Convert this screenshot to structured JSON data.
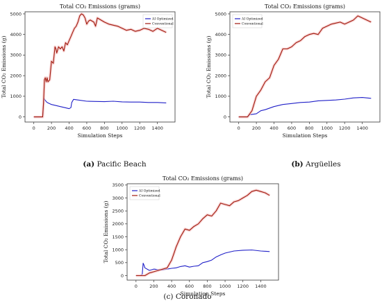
{
  "colors": {
    "ai": "#1f1fc8",
    "conventional": "#a0180c",
    "halo": "#f5c6c6",
    "axis": "#333333"
  },
  "subfigures": [
    {
      "tag": "(a)",
      "name": "Pacific Beach"
    },
    {
      "tag": "(b)",
      "name": "Argüelles"
    },
    {
      "tag": "(c)",
      "name": "Coronado"
    }
  ],
  "chart_data": [
    {
      "type": "line",
      "title": "Total CO₂ Emissions (grams)",
      "xlabel": "Simulation Steps",
      "ylabel": "Total CO₂ Emissions (g)",
      "xlim": [
        -100,
        1600
      ],
      "ylim": [
        -250,
        5100
      ],
      "xticks": [
        0,
        200,
        400,
        600,
        800,
        1000,
        1200,
        1400
      ],
      "yticks": [
        0,
        1000,
        2000,
        3000,
        4000,
        5000
      ],
      "legend": "top-center",
      "series": [
        {
          "name": "AI Optimized",
          "color": "#1f1fc8",
          "x": [
            0,
            100,
            110,
            115,
            130,
            150,
            200,
            250,
            300,
            350,
            400,
            420,
            430,
            450,
            500,
            600,
            700,
            800,
            900,
            1000,
            1100,
            1200,
            1300,
            1400,
            1500
          ],
          "y": [
            0,
            0,
            600,
            900,
            800,
            700,
            600,
            550,
            500,
            450,
            400,
            450,
            700,
            850,
            820,
            760,
            750,
            740,
            760,
            730,
            720,
            720,
            700,
            700,
            680
          ]
        },
        {
          "name": "Conventional",
          "color": "#a0180c",
          "x": [
            0,
            100,
            110,
            120,
            130,
            140,
            150,
            160,
            180,
            200,
            220,
            240,
            250,
            260,
            280,
            300,
            320,
            340,
            360,
            380,
            400,
            420,
            440,
            460,
            480,
            500,
            520,
            540,
            560,
            580,
            600,
            620,
            640,
            680,
            700,
            720,
            760,
            800,
            850,
            900,
            950,
            1000,
            1050,
            1100,
            1150,
            1200,
            1250,
            1300,
            1350,
            1400,
            1450,
            1500
          ],
          "y": [
            0,
            0,
            700,
            1800,
            1900,
            1700,
            1900,
            1700,
            1800,
            2700,
            2600,
            3400,
            3300,
            3100,
            3400,
            3300,
            3400,
            3200,
            3600,
            3500,
            3700,
            3900,
            4100,
            4300,
            4400,
            4600,
            4900,
            5000,
            4950,
            4800,
            4500,
            4650,
            4700,
            4600,
            4400,
            4800,
            4700,
            4600,
            4500,
            4450,
            4400,
            4300,
            4200,
            4250,
            4150,
            4200,
            4300,
            4250,
            4150,
            4300,
            4200,
            4100
          ]
        }
      ]
    },
    {
      "type": "line",
      "title": "Total CO₂ Emissions (grams)",
      "xlabel": "Simulation Steps",
      "ylabel": "Total CO₂ Emissions (g)",
      "xlim": [
        -100,
        1600
      ],
      "ylim": [
        -250,
        5100
      ],
      "xticks": [
        0,
        200,
        400,
        600,
        800,
        1000,
        1200,
        1400
      ],
      "yticks": [
        0,
        1000,
        2000,
        3000,
        4000,
        5000
      ],
      "legend": "top-left",
      "series": [
        {
          "name": "AI Optimized",
          "color": "#1f1fc8",
          "x": [
            0,
            100,
            120,
            200,
            250,
            300,
            400,
            500,
            600,
            700,
            800,
            900,
            1000,
            1100,
            1200,
            1300,
            1400,
            1500
          ],
          "y": [
            0,
            0,
            100,
            150,
            300,
            350,
            500,
            600,
            650,
            700,
            720,
            780,
            800,
            820,
            860,
            920,
            940,
            900
          ]
        },
        {
          "name": "Conventional",
          "color": "#a0180c",
          "x": [
            0,
            100,
            150,
            200,
            250,
            300,
            350,
            400,
            450,
            500,
            550,
            600,
            650,
            700,
            750,
            800,
            850,
            900,
            950,
            1000,
            1050,
            1100,
            1150,
            1200,
            1250,
            1300,
            1350,
            1400,
            1450,
            1500
          ],
          "y": [
            0,
            0,
            300,
            1000,
            1300,
            1700,
            1900,
            2500,
            2800,
            3300,
            3300,
            3400,
            3600,
            3700,
            3900,
            4000,
            4050,
            4000,
            4300,
            4400,
            4500,
            4550,
            4600,
            4500,
            4600,
            4700,
            4900,
            4800,
            4700,
            4600
          ]
        }
      ]
    },
    {
      "type": "line",
      "title": "Total CO₂ Emissions (grams)",
      "xlabel": "Simulation Steps",
      "ylabel": "Total CO₂ Emissions (g)",
      "xlim": [
        -100,
        1600
      ],
      "ylim": [
        -175,
        3550
      ],
      "xticks": [
        0,
        200,
        400,
        600,
        800,
        1000,
        1200,
        1400
      ],
      "yticks": [
        0,
        500,
        1000,
        1500,
        2000,
        2500,
        3000,
        3500
      ],
      "legend": "top-left",
      "series": [
        {
          "name": "AI Optimized",
          "color": "#1f1fc8",
          "x": [
            0,
            50,
            70,
            80,
            90,
            100,
            150,
            200,
            250,
            300,
            350,
            400,
            450,
            500,
            550,
            600,
            650,
            700,
            750,
            800,
            850,
            900,
            950,
            1000,
            1100,
            1200,
            1300,
            1400,
            1500
          ],
          "y": [
            0,
            0,
            50,
            480,
            400,
            300,
            200,
            250,
            230,
            220,
            250,
            280,
            300,
            350,
            380,
            330,
            360,
            380,
            500,
            540,
            600,
            720,
            800,
            870,
            950,
            980,
            990,
            950,
            930
          ]
        },
        {
          "name": "Conventional",
          "color": "#a0180c",
          "x": [
            0,
            100,
            150,
            200,
            250,
            300,
            350,
            400,
            430,
            450,
            500,
            550,
            600,
            650,
            700,
            750,
            800,
            850,
            900,
            950,
            1000,
            1050,
            1100,
            1150,
            1200,
            1250,
            1300,
            1350,
            1400,
            1450,
            1500
          ],
          "y": [
            0,
            0,
            100,
            150,
            200,
            250,
            300,
            600,
            900,
            1100,
            1500,
            1800,
            1750,
            1900,
            2000,
            2200,
            2350,
            2300,
            2500,
            2800,
            2750,
            2700,
            2850,
            2900,
            3000,
            3100,
            3250,
            3300,
            3250,
            3200,
            3100
          ]
        }
      ]
    }
  ]
}
